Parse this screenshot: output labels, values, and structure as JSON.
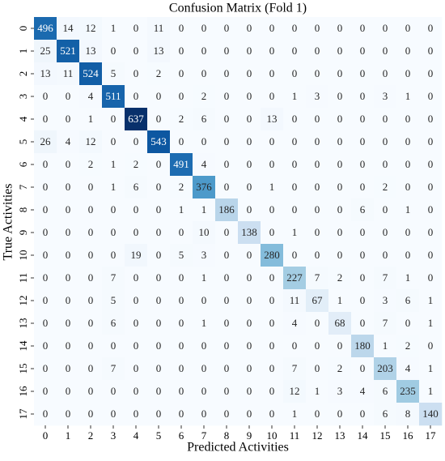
{
  "chart_data": {
    "type": "heatmap",
    "title": "Confusion Matrix (Fold 1)",
    "x_label": "Predicted Activities",
    "y_label": "True Activities",
    "x_categories": [
      "0",
      "1",
      "2",
      "3",
      "4",
      "5",
      "6",
      "7",
      "8",
      "9",
      "10",
      "11",
      "12",
      "13",
      "14",
      "15",
      "16",
      "17"
    ],
    "y_categories": [
      "0",
      "1",
      "2",
      "3",
      "4",
      "5",
      "6",
      "7",
      "8",
      "9",
      "10",
      "11",
      "12",
      "13",
      "14",
      "15",
      "16",
      "17"
    ],
    "colormap": [
      "#f7fbff",
      "#deebf7",
      "#c6dbef",
      "#9ecae1",
      "#6baed6",
      "#4292c6",
      "#2171b5",
      "#08519c",
      "#08306b"
    ],
    "values": [
      [
        496,
        14,
        12,
        1,
        0,
        11,
        0,
        0,
        0,
        0,
        0,
        0,
        0,
        0,
        0,
        0,
        0,
        0
      ],
      [
        25,
        521,
        13,
        0,
        0,
        13,
        0,
        0,
        0,
        0,
        0,
        0,
        0,
        0,
        0,
        0,
        0,
        0
      ],
      [
        13,
        11,
        524,
        5,
        0,
        2,
        0,
        0,
        0,
        0,
        0,
        0,
        0,
        0,
        0,
        0,
        0,
        0
      ],
      [
        0,
        0,
        4,
        511,
        0,
        0,
        0,
        2,
        0,
        0,
        0,
        1,
        3,
        0,
        0,
        3,
        1,
        0
      ],
      [
        0,
        0,
        1,
        0,
        637,
        0,
        2,
        6,
        0,
        0,
        13,
        0,
        0,
        0,
        0,
        0,
        0,
        0
      ],
      [
        26,
        4,
        12,
        0,
        0,
        543,
        0,
        0,
        0,
        0,
        0,
        0,
        0,
        0,
        0,
        0,
        0,
        0
      ],
      [
        0,
        0,
        2,
        1,
        2,
        0,
        491,
        4,
        0,
        0,
        0,
        0,
        0,
        0,
        0,
        0,
        0,
        0
      ],
      [
        0,
        0,
        0,
        1,
        6,
        0,
        2,
        376,
        0,
        0,
        1,
        0,
        0,
        0,
        0,
        2,
        0,
        0
      ],
      [
        0,
        0,
        0,
        0,
        0,
        0,
        1,
        1,
        186,
        0,
        0,
        0,
        0,
        0,
        6,
        0,
        1,
        0
      ],
      [
        0,
        0,
        0,
        0,
        0,
        0,
        0,
        10,
        0,
        138,
        0,
        1,
        0,
        0,
        0,
        0,
        0,
        0
      ],
      [
        0,
        0,
        0,
        0,
        19,
        0,
        5,
        3,
        0,
        0,
        280,
        0,
        0,
        0,
        0,
        0,
        0,
        0
      ],
      [
        0,
        0,
        0,
        7,
        0,
        0,
        0,
        1,
        0,
        0,
        0,
        227,
        7,
        2,
        0,
        7,
        1,
        0
      ],
      [
        0,
        0,
        0,
        5,
        0,
        0,
        0,
        0,
        0,
        0,
        0,
        11,
        67,
        1,
        0,
        3,
        6,
        1
      ],
      [
        0,
        0,
        0,
        6,
        0,
        0,
        0,
        1,
        0,
        0,
        0,
        4,
        0,
        68,
        0,
        7,
        0,
        1
      ],
      [
        0,
        0,
        0,
        0,
        0,
        0,
        0,
        0,
        0,
        0,
        0,
        0,
        0,
        0,
        180,
        1,
        2,
        0
      ],
      [
        0,
        0,
        0,
        7,
        0,
        0,
        0,
        0,
        0,
        0,
        0,
        7,
        0,
        2,
        0,
        203,
        4,
        1
      ],
      [
        0,
        0,
        0,
        0,
        0,
        0,
        0,
        0,
        0,
        0,
        0,
        12,
        1,
        3,
        4,
        6,
        235,
        1
      ],
      [
        0,
        0,
        0,
        0,
        0,
        0,
        0,
        0,
        0,
        0,
        0,
        1,
        0,
        0,
        0,
        6,
        8,
        140
      ]
    ]
  }
}
